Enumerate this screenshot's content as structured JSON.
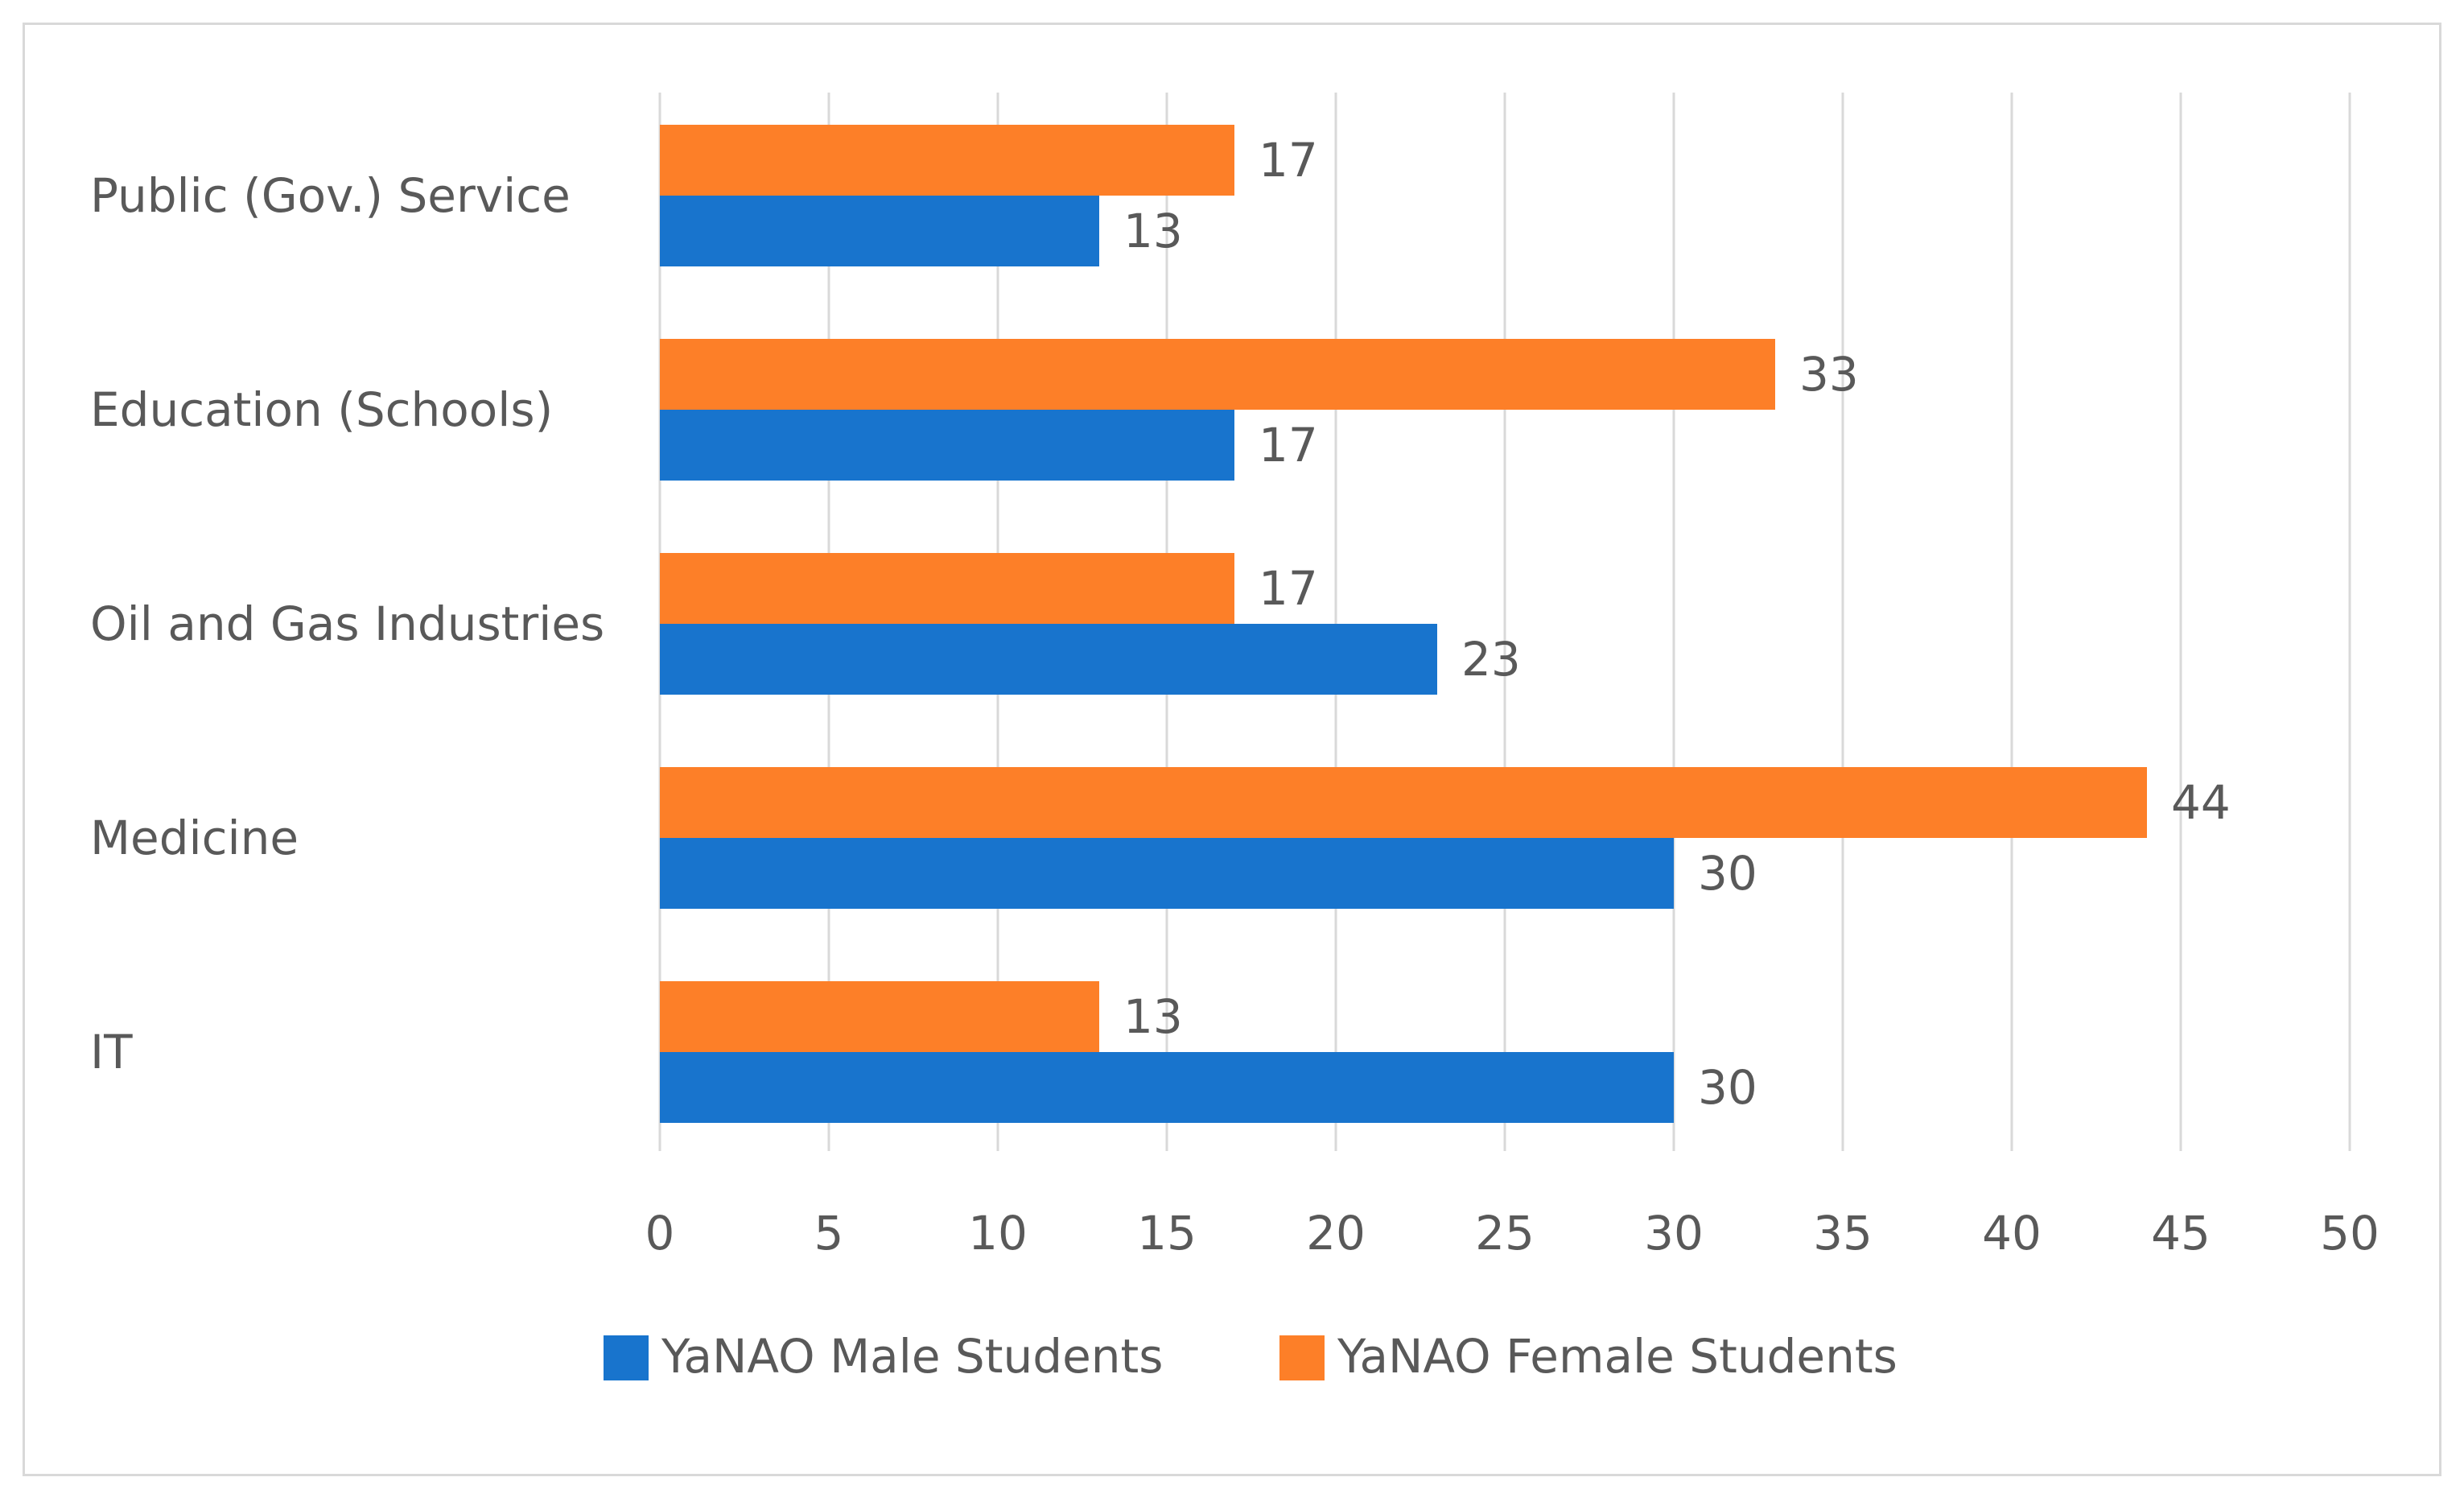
{
  "chart_data": {
    "type": "bar",
    "orientation": "horizontal",
    "title": "",
    "xlabel": "",
    "ylabel": "",
    "categories": [
      "Public (Gov.) Service",
      "Education (Schools)",
      "Oil and Gas Industries",
      "Medicine",
      "IT"
    ],
    "series": [
      {
        "name": "YaNAO Female Students",
        "color": "#fd7f28",
        "values": [
          17,
          33,
          17,
          44,
          13
        ]
      },
      {
        "name": "YaNAO Male Students",
        "color": "#1874cd",
        "values": [
          13,
          17,
          23,
          30,
          30
        ]
      }
    ],
    "legend_order": [
      "YaNAO Male Students",
      "YaNAO Female Students"
    ],
    "xlim": [
      0,
      50
    ],
    "xticks": [
      0,
      5,
      10,
      15,
      20,
      25,
      30,
      35,
      40,
      45,
      50
    ],
    "grid": true,
    "gridline_color": "#d9d9d9",
    "legend_position": "bottom"
  }
}
